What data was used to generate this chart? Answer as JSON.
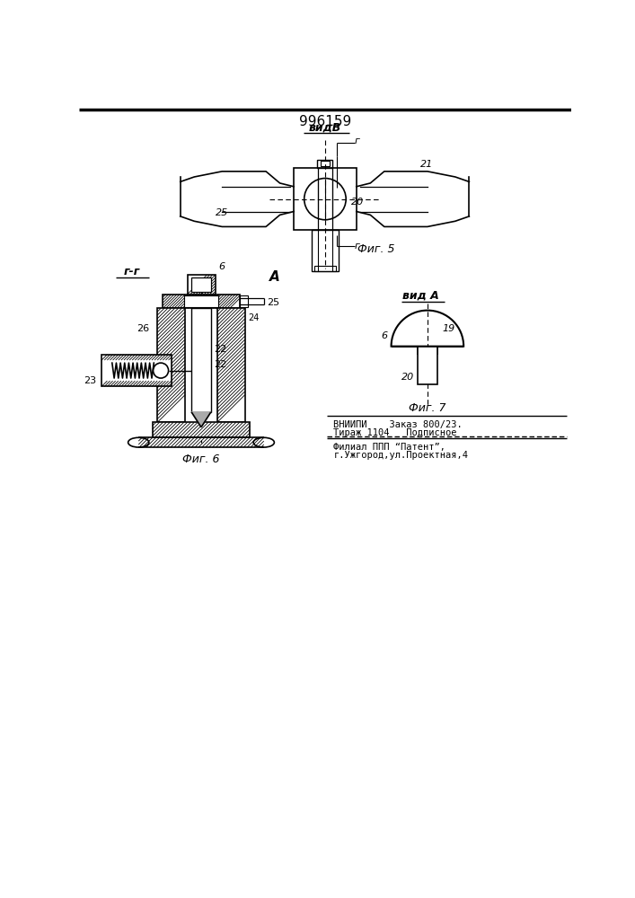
{
  "patent_number": "996159",
  "bg": "#ffffff",
  "lc": "#000000",
  "fig5_label": "видВ",
  "fig5_caption": "Фиг. 5",
  "fig6_caption": "Фиг. 6",
  "fig6_label": "г-г",
  "fig7_label": "вид А",
  "fig7_caption": "Фиг. 7",
  "view_A": "А",
  "bottom_text1": "ВНИИПИ    Заказ 800/23.",
  "bottom_text2": "Тираж 1104   Подписное",
  "bottom_text3": "Филиал ППП “Патент”,",
  "bottom_text4": "г.Ужгород,ул.Проектная,4"
}
